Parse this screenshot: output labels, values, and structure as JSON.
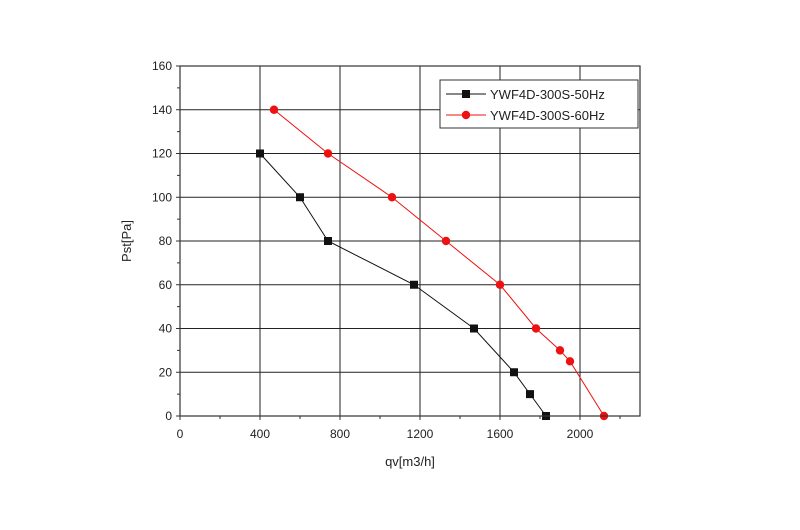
{
  "chart_data": {
    "type": "line",
    "title": "",
    "xlabel": "qv[m3/h]",
    "ylabel": "Pst[Pa]",
    "xlim": [
      0,
      2300
    ],
    "ylim": [
      0,
      160
    ],
    "x_ticks": [
      0,
      400,
      800,
      1200,
      1600,
      2000
    ],
    "y_ticks": [
      0,
      20,
      40,
      60,
      80,
      100,
      120,
      140,
      160
    ],
    "x_tick_labels": [
      "0",
      "400",
      "800",
      "1200",
      "1600",
      "2000"
    ],
    "y_tick_labels": [
      "0",
      "20",
      "40",
      "60",
      "80",
      "100",
      "120",
      "140",
      "160"
    ],
    "grid": true,
    "legend_position": "top-right",
    "series": [
      {
        "name": "YWF4D-300S-50Hz",
        "color": "#111111",
        "marker": "square",
        "x": [
          400,
          600,
          740,
          1170,
          1470,
          1670,
          1750,
          1830
        ],
        "y": [
          120,
          100,
          80,
          60,
          40,
          20,
          10,
          0
        ]
      },
      {
        "name": "YWF4D-300S-60Hz",
        "color": "#ee1111",
        "marker": "circle",
        "x": [
          470,
          740,
          1060,
          1330,
          1600,
          1780,
          1900,
          1950,
          2120
        ],
        "y": [
          140,
          120,
          100,
          80,
          60,
          40,
          30,
          25,
          0
        ]
      }
    ]
  }
}
